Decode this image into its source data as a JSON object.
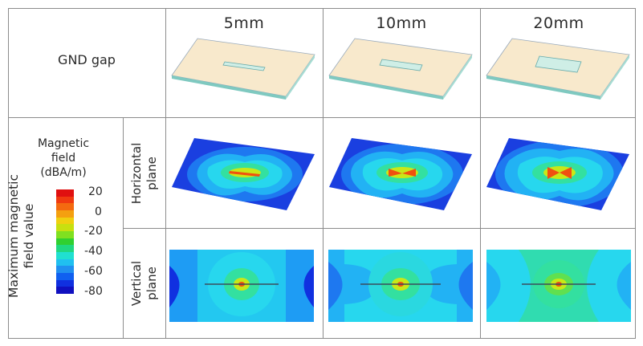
{
  "columns": [
    {
      "label": "5mm"
    },
    {
      "label": "10mm"
    },
    {
      "label": "20mm"
    }
  ],
  "row_gnd": {
    "label": "GND gap"
  },
  "row_field": {
    "side_title": "Maximum magnetic field value",
    "side_title_line1": "Maximum magnetic",
    "side_title_line2": "field value",
    "legend_title_line1": "Magnetic",
    "legend_title_line2": "field",
    "legend_title_line3": "(dBA/m)",
    "legend_ticks": [
      "20",
      "0",
      "-20",
      "-40",
      "-60",
      "-80"
    ],
    "legend_colors": [
      "#e01010",
      "#f03a10",
      "#f46a10",
      "#f4a010",
      "#f0d010",
      "#c8e010",
      "#80e020",
      "#30d030",
      "#20d880",
      "#20e0d0",
      "#20c0f0",
      "#2090f0",
      "#1060f0",
      "#1030e0",
      "#1010c0"
    ],
    "subrows": [
      {
        "label_line1": "Horizontal",
        "label_line2": "plane"
      },
      {
        "label_line1": "Vertical",
        "label_line2": "plane"
      }
    ]
  }
}
